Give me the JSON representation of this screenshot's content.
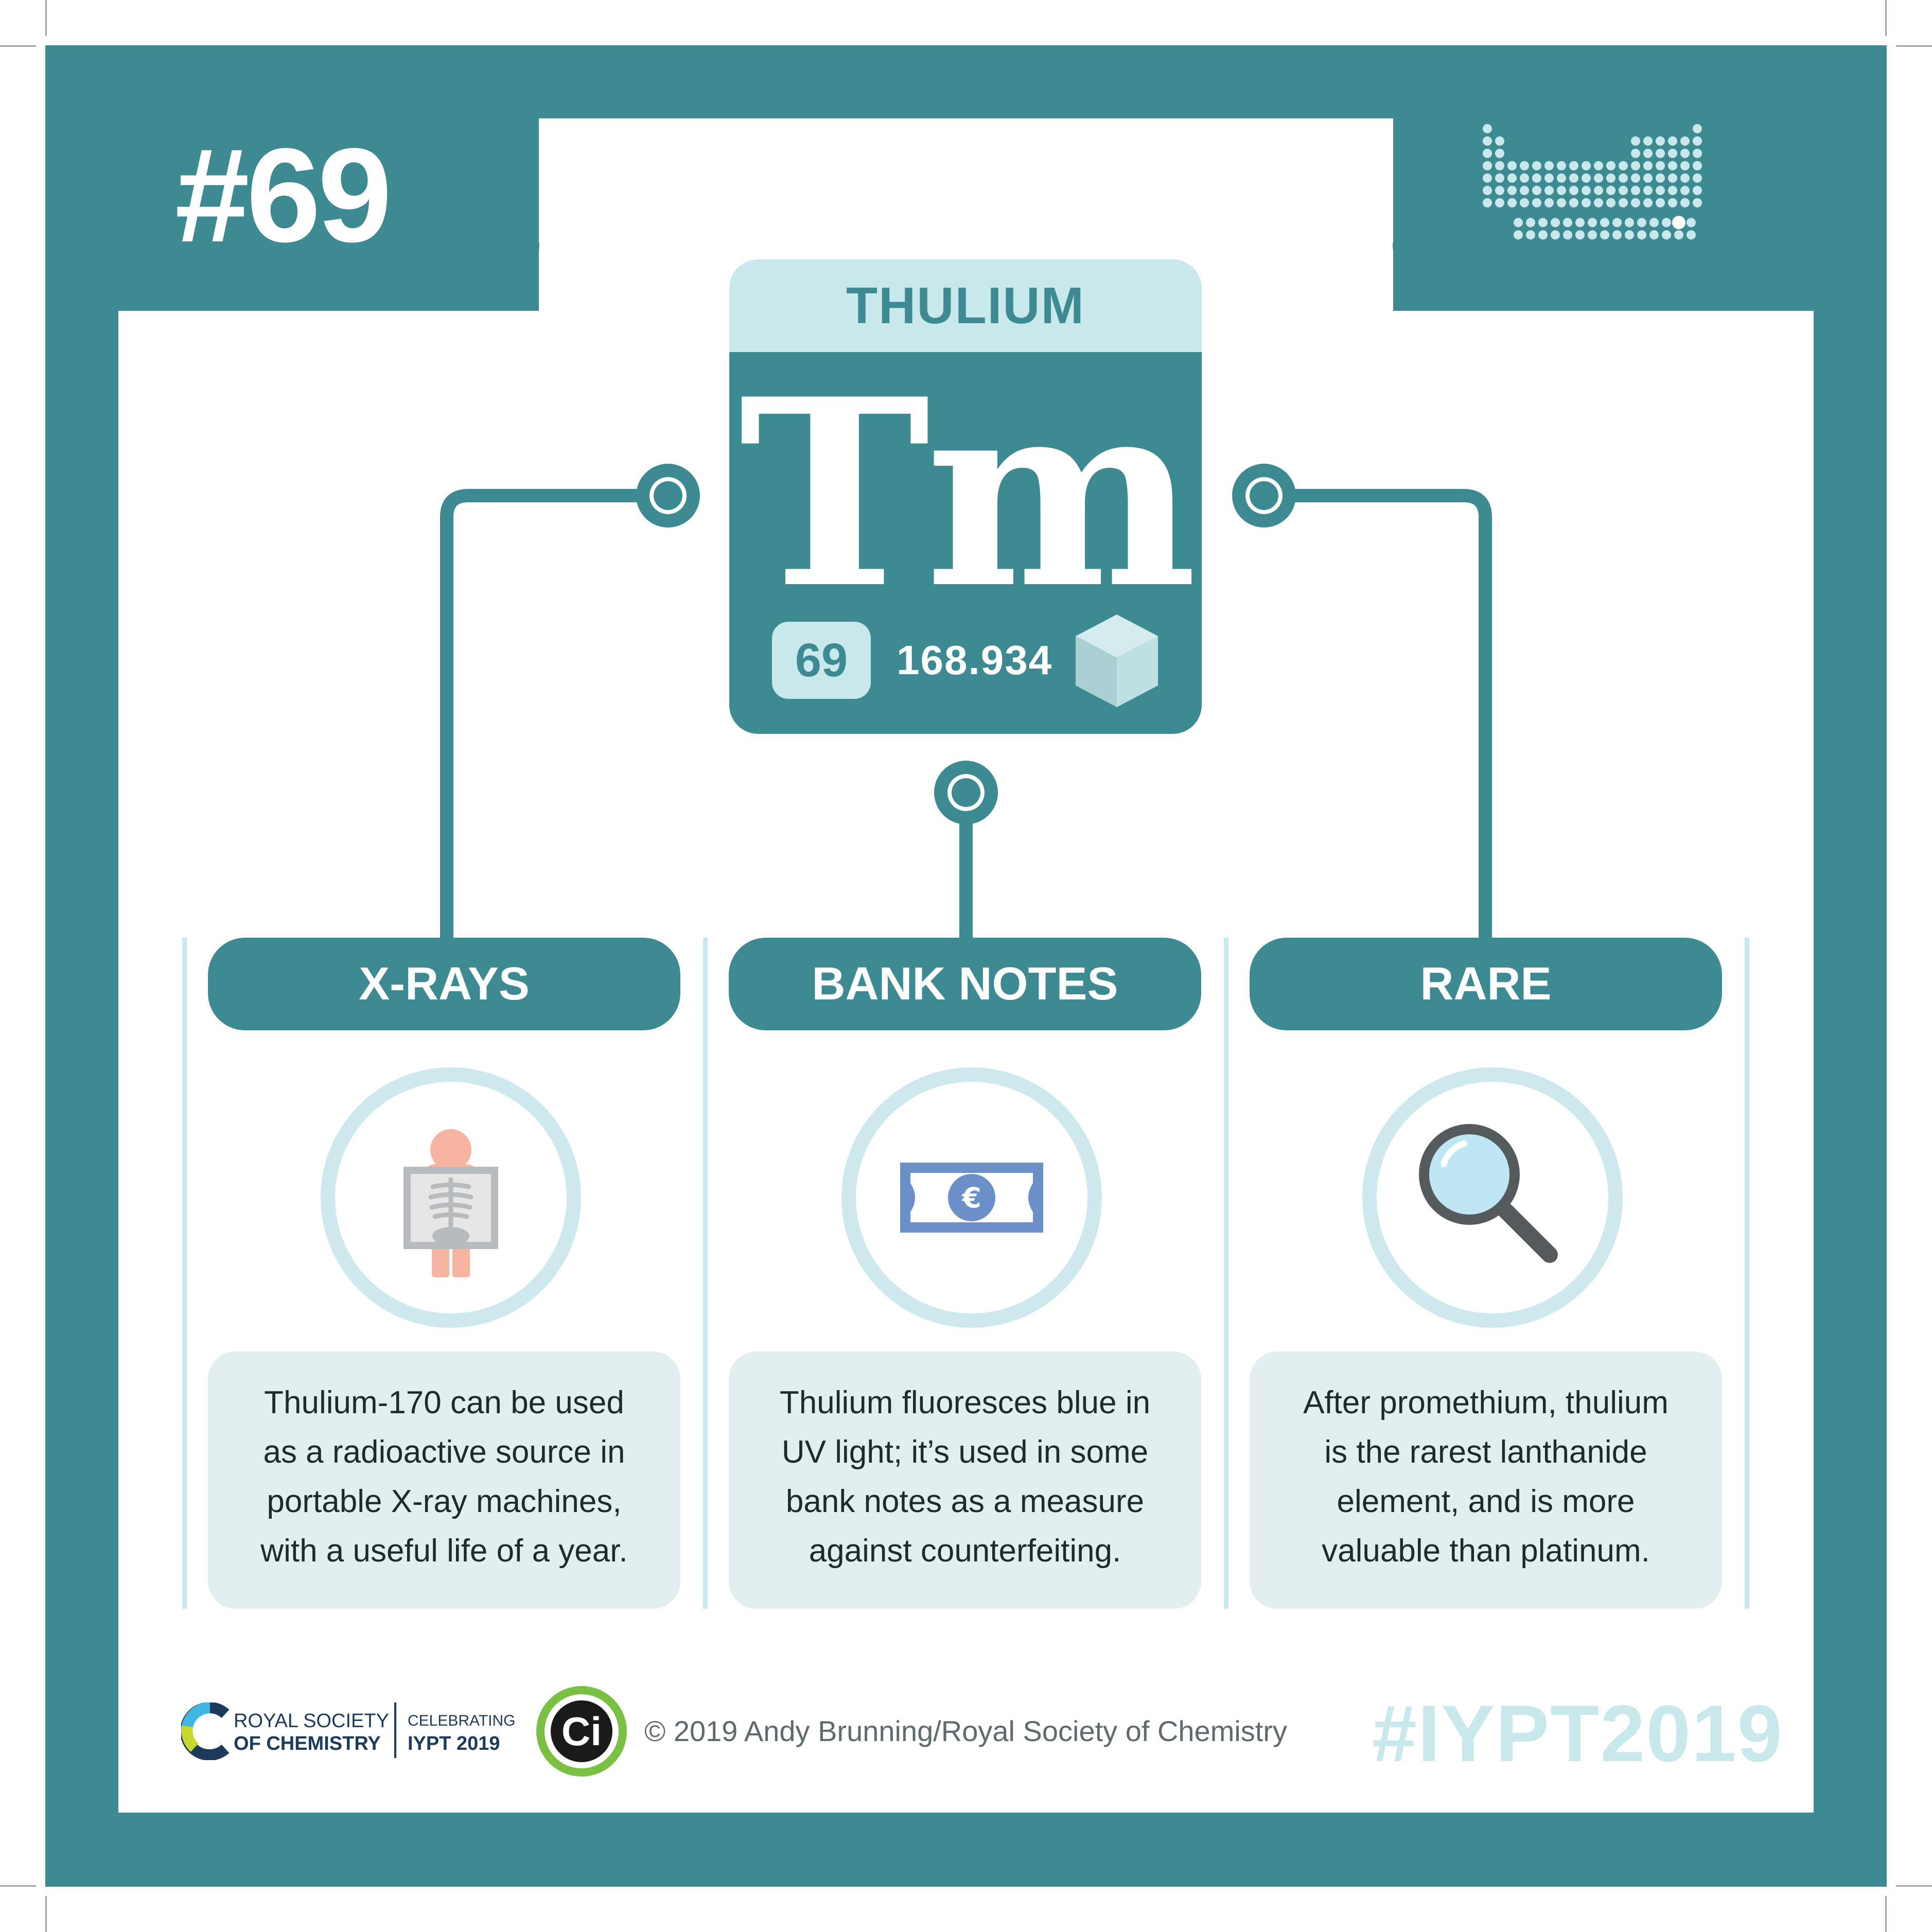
{
  "issue_number": "#69",
  "element": {
    "name": "THULIUM",
    "symbol": "Tm",
    "atomic_number": "69",
    "atomic_mass": "168.934"
  },
  "facts": [
    {
      "title": "X-RAYS",
      "icon": "x-ray-person-icon",
      "lines": [
        "Thulium-170 can be used",
        "as a radioactive source in",
        "portable X-ray machines,",
        "with a useful life of a year."
      ]
    },
    {
      "title": "BANK NOTES",
      "icon": "euro-banknote-icon",
      "lines": [
        "Thulium fluoresces blue in",
        "UV light; it’s used in some",
        "bank notes as a measure",
        "against counterfeiting."
      ]
    },
    {
      "title": "RARE",
      "icon": "magnifying-glass-icon",
      "lines": [
        "After promethium, thulium",
        "is the rarest lanthanide",
        "element, and is more",
        "valuable than platinum."
      ]
    }
  ],
  "footer": {
    "rsc_line1": "ROYAL SOCIETY",
    "rsc_line2": "OF CHEMISTRY",
    "iypt_line1": "CELEBRATING",
    "iypt_line2": "IYPT 2019",
    "ci_badge": "Ci",
    "copyright": "© 2019 Andy Brunning/Royal Society of Chemistry",
    "hashtag": "#IYPT2019"
  },
  "colors": {
    "teal": "#3e8a93",
    "light_teal": "#c9e8ec",
    "text_box": "#e3eef0",
    "text": "#1f2a2e"
  }
}
